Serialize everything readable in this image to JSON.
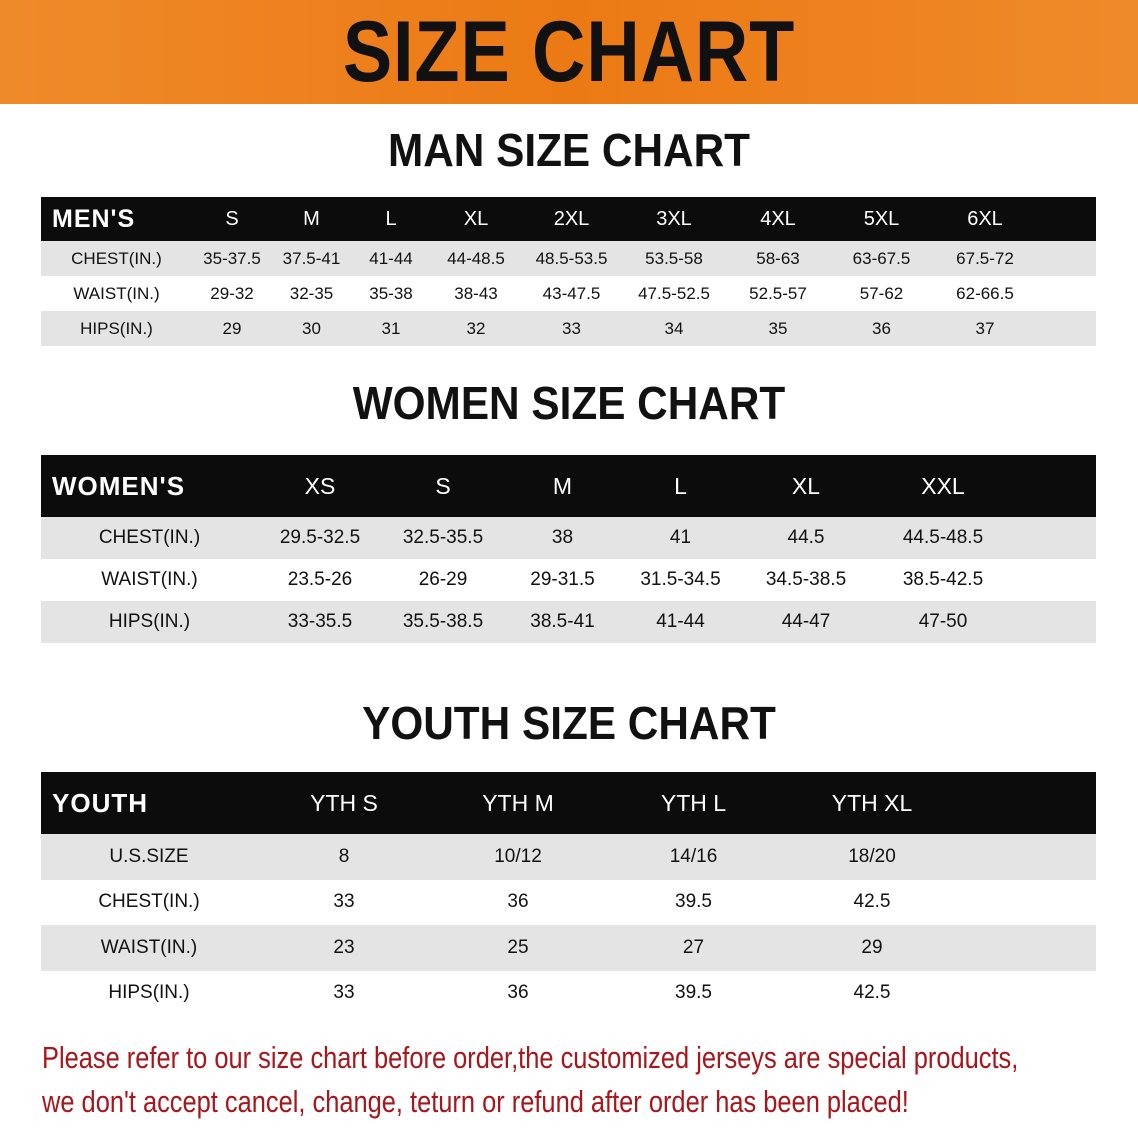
{
  "banner": {
    "title": "SIZE CHART",
    "color": "#ec7a14"
  },
  "notice": {
    "line1": "Please refer to our size chart before order,the customized jerseys are special products,",
    "line2": "we don't accept cancel, change, teturn or refund after order has been placed!",
    "color": "#a8161c"
  },
  "tables": {
    "men": {
      "title": "MAN SIZE CHART",
      "header": [
        "MEN'S",
        "S",
        "M",
        "L",
        "XL",
        "2XL",
        "3XL",
        "4XL",
        "5XL",
        "6XL"
      ],
      "rows": [
        [
          "CHEST(IN.)",
          "35-37.5",
          "37.5-41",
          "41-44",
          "44-48.5",
          "48.5-53.5",
          "53.5-58",
          "58-63",
          "63-67.5",
          "67.5-72"
        ],
        [
          "WAIST(IN.)",
          "29-32",
          "32-35",
          "35-38",
          "38-43",
          "43-47.5",
          "47.5-52.5",
          "52.5-57",
          "57-62",
          "62-66.5"
        ],
        [
          "HIPS(IN.)",
          "29",
          "30",
          "31",
          "32",
          "33",
          "34",
          "35",
          "36",
          "37"
        ]
      ]
    },
    "women": {
      "title": "WOMEN SIZE CHART",
      "header": [
        "WOMEN'S",
        "XS",
        "S",
        "M",
        "L",
        "XL",
        "XXL"
      ],
      "rows": [
        [
          "CHEST(IN.)",
          "29.5-32.5",
          "32.5-35.5",
          "38",
          "41",
          "44.5",
          "44.5-48.5"
        ],
        [
          "WAIST(IN.)",
          "23.5-26",
          "26-29",
          "29-31.5",
          "31.5-34.5",
          "34.5-38.5",
          "38.5-42.5"
        ],
        [
          "HIPS(IN.)",
          "33-35.5",
          "35.5-38.5",
          "38.5-41",
          "41-44",
          "44-47",
          "47-50"
        ]
      ]
    },
    "youth": {
      "title": "YOUTH SIZE CHART",
      "header": [
        "YOUTH",
        "YTH S",
        "YTH M",
        "YTH L",
        "YTH XL"
      ],
      "rows": [
        [
          "U.S.SIZE",
          "8",
          "10/12",
          "14/16",
          "18/20"
        ],
        [
          "CHEST(IN.)",
          "33",
          "36",
          "39.5",
          "42.5"
        ],
        [
          "WAIST(IN.)",
          "23",
          "25",
          "27",
          "29"
        ],
        [
          "HIPS(IN.)",
          "33",
          "36",
          "39.5",
          "42.5"
        ]
      ]
    }
  }
}
